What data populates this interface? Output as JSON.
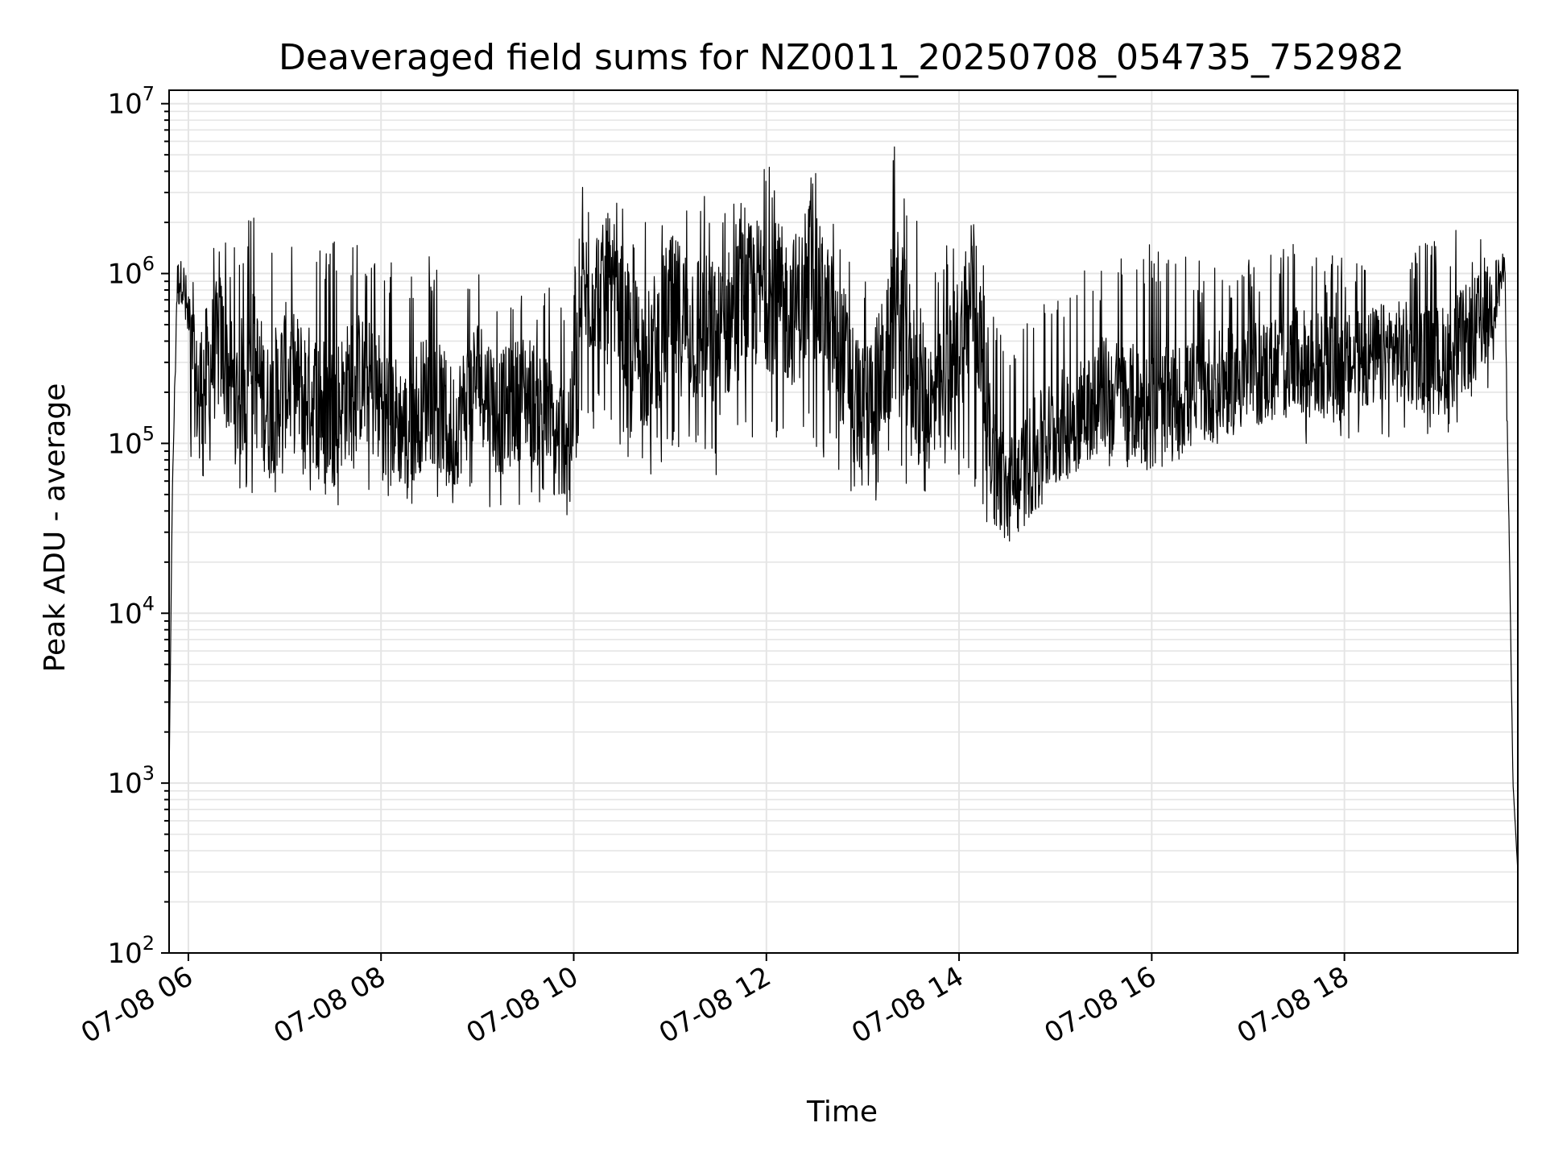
{
  "chart_data": {
    "type": "line",
    "title": "Deaveraged field sums for NZ0011_20250708_054735_752982",
    "xlabel": "Time",
    "ylabel": "Peak ADU - average",
    "yscale": "log",
    "ylim": [
      100,
      12000000
    ],
    "xlim": [
      "2025-07-08 05:48",
      "2025-07-08 19:48"
    ],
    "grid": true,
    "line_color": "#000000",
    "grid_color": "#e5e5e5",
    "x_tick_labels": [
      "07-08 06",
      "07-08 08",
      "07-08 10",
      "07-08 12",
      "07-08 14",
      "07-08 16",
      "07-08 18"
    ],
    "x_ticks": [
      "2025-07-08 06:00",
      "2025-07-08 08:00",
      "2025-07-08 10:00",
      "2025-07-08 12:00",
      "2025-07-08 14:00",
      "2025-07-08 16:00",
      "2025-07-08 18:00"
    ],
    "y_ticks": [
      {
        "base": "10",
        "exp": "2",
        "value": 100
      },
      {
        "base": "10",
        "exp": "3",
        "value": 1000
      },
      {
        "base": "10",
        "exp": "4",
        "value": 10000
      },
      {
        "base": "10",
        "exp": "5",
        "value": 100000
      },
      {
        "base": "10",
        "exp": "6",
        "value": 1000000
      },
      {
        "base": "10",
        "exp": "7",
        "value": 10000000
      }
    ],
    "series": [
      {
        "x": [
          "2025-07-08 05:48",
          "2025-07-08 05:50",
          "2025-07-08 05:53",
          "2025-07-08 05:56",
          "2025-07-08 05:58",
          "2025-07-08 06:00",
          "2025-07-08 06:05",
          "2025-07-08 06:10",
          "2025-07-08 06:20",
          "2025-07-08 06:30",
          "2025-07-08 06:40",
          "2025-07-08 06:50",
          "2025-07-08 07:00",
          "2025-07-08 07:15",
          "2025-07-08 07:30",
          "2025-07-08 07:45",
          "2025-07-08 08:00",
          "2025-07-08 08:15",
          "2025-07-08 08:30",
          "2025-07-08 08:45",
          "2025-07-08 09:00",
          "2025-07-08 09:15",
          "2025-07-08 09:30",
          "2025-07-08 09:42",
          "2025-07-08 09:50",
          "2025-07-08 10:00",
          "2025-07-08 10:05",
          "2025-07-08 10:15",
          "2025-07-08 10:30",
          "2025-07-08 10:45",
          "2025-07-08 11:00",
          "2025-07-08 11:15",
          "2025-07-08 11:30",
          "2025-07-08 11:45",
          "2025-07-08 12:00",
          "2025-07-08 12:15",
          "2025-07-08 12:30",
          "2025-07-08 12:45",
          "2025-07-08 13:00",
          "2025-07-08 13:15",
          "2025-07-08 13:20",
          "2025-07-08 13:30",
          "2025-07-08 13:45",
          "2025-07-08 14:00",
          "2025-07-08 14:10",
          "2025-07-08 14:20",
          "2025-07-08 14:30",
          "2025-07-08 14:45",
          "2025-07-08 15:00",
          "2025-07-08 15:15",
          "2025-07-08 15:30",
          "2025-07-08 15:45",
          "2025-07-08 16:00",
          "2025-07-08 16:30",
          "2025-07-08 17:00",
          "2025-07-08 17:30",
          "2025-07-08 18:00",
          "2025-07-08 18:30",
          "2025-07-08 19:00",
          "2025-07-08 19:15",
          "2025-07-08 19:30",
          "2025-07-08 19:40",
          "2025-07-08 19:45",
          "2025-07-08 19:48"
        ],
        "y": [
          1000,
          50000,
          900000,
          1000000,
          700000,
          500000,
          200000,
          250000,
          400000,
          180000,
          300000,
          150000,
          250000,
          200000,
          150000,
          250000,
          180000,
          120000,
          200000,
          120000,
          250000,
          150000,
          200000,
          150000,
          100000,
          150000,
          700000,
          900000,
          500000,
          300000,
          600000,
          500000,
          400000,
          700000,
          800000,
          600000,
          800000,
          400000,
          150000,
          300000,
          600000,
          300000,
          150000,
          400000,
          800000,
          80000,
          50000,
          80000,
          120000,
          150000,
          200000,
          180000,
          150000,
          200000,
          250000,
          300000,
          280000,
          350000,
          300000,
          400000,
          600000,
          1100000,
          1000,
          300
        ],
        "min_envelope": [
          1000,
          50000,
          200000,
          300000,
          150000,
          80000,
          60000,
          60000,
          60000,
          50000,
          50000,
          50000,
          45000,
          50000,
          40000,
          55000,
          50000,
          40000,
          45000,
          40000,
          45000,
          40000,
          45000,
          40000,
          30000,
          40000,
          100000,
          120000,
          80000,
          60000,
          80000,
          70000,
          60000,
          80000,
          90000,
          80000,
          90000,
          60000,
          40000,
          50000,
          60000,
          50000,
          40000,
          60000,
          50000,
          30000,
          25000,
          35000,
          50000,
          60000,
          70000,
          70000,
          70000,
          80000,
          90000,
          100000,
          100000,
          110000,
          110000,
          130000,
          200000,
          500000,
          1000,
          300
        ],
        "max_envelope": [
          1000,
          50000,
          1100000,
          1200000,
          1000000,
          900000,
          1200000,
          1500000,
          2000000,
          1500000,
          2500000,
          1600000,
          1800000,
          1500000,
          1600000,
          1500000,
          1600000,
          900000,
          1300000,
          900000,
          1000000,
          900000,
          1000000,
          900000,
          800000,
          1000000,
          3500000,
          3000000,
          2500000,
          2000000,
          3500000,
          4000000,
          3000000,
          3000000,
          4500000,
          3500000,
          4000000,
          2500000,
          1000000,
          2000000,
          7000000,
          2500000,
          1200000,
          2000000,
          2500000,
          600000,
          400000,
          600000,
          900000,
          1000000,
          1200000,
          1300000,
          1500000,
          1200000,
          1300000,
          1500000,
          1300000,
          1400000,
          1800000,
          2000000,
          2100000,
          1200000,
          1000,
          300
        ]
      }
    ]
  }
}
